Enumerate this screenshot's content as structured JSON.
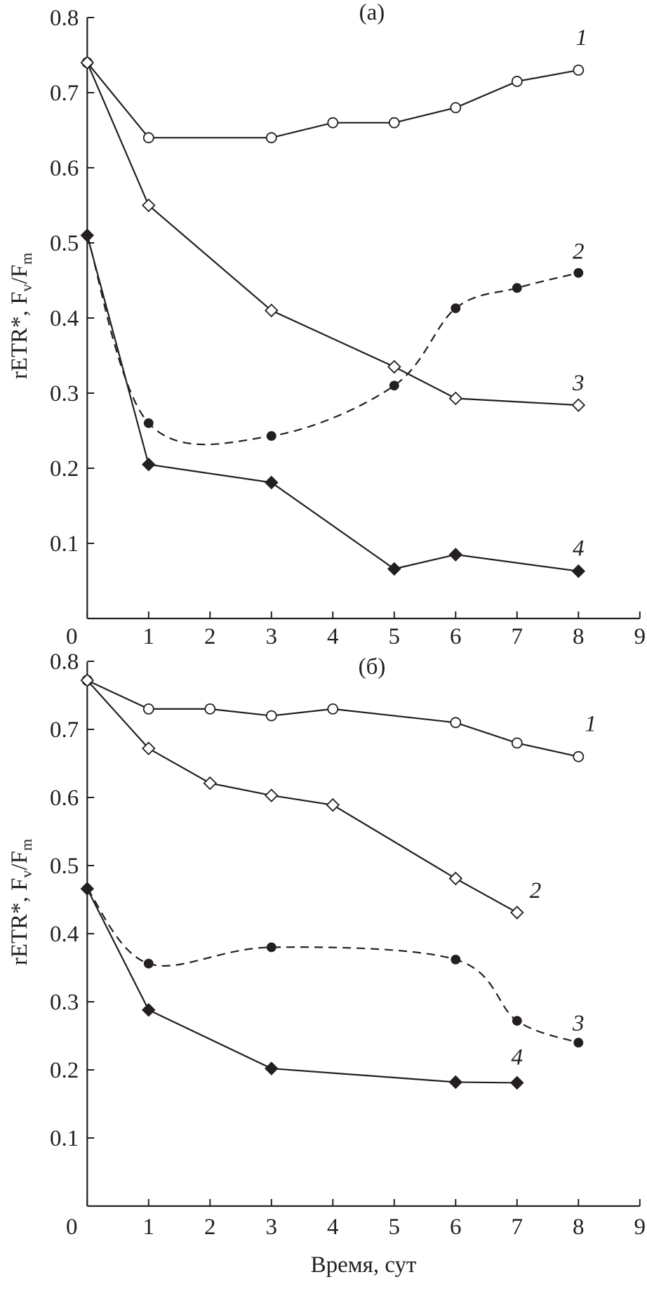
{
  "chart_data": [
    {
      "type": "line",
      "title": "(а)",
      "ylabel": "rETR*, Fv/Fm",
      "ylabel_parts": {
        "main": "rETR*, F",
        "sub1": "v",
        "mid": "/F",
        "sub2": "m"
      },
      "xlabel": "",
      "xlim": [
        0,
        9
      ],
      "ylim": [
        0,
        0.8
      ],
      "xticks": [
        "0",
        "1",
        "2",
        "3",
        "4",
        "5",
        "6",
        "7",
        "8",
        "9"
      ],
      "yticks": [
        "0.1",
        "0.2",
        "0.3",
        "0.4",
        "0.5",
        "0.6",
        "0.7",
        "0.8"
      ],
      "grid": false,
      "series": [
        {
          "name": "1",
          "marker": "open-circle",
          "dash": false,
          "x": [
            0,
            1,
            3,
            4,
            5,
            6,
            7,
            8
          ],
          "y": [
            0.74,
            0.64,
            0.64,
            0.66,
            0.66,
            0.68,
            0.715,
            0.73
          ],
          "label_at": [
            8.05,
            0.775
          ]
        },
        {
          "name": "2",
          "marker": "filled-circle",
          "dash": true,
          "x": [
            0,
            1,
            3,
            5,
            6,
            7,
            8
          ],
          "y": [
            0.51,
            0.26,
            0.243,
            0.31,
            0.413,
            0.44,
            0.46
          ],
          "label_at": [
            8.0,
            0.49
          ]
        },
        {
          "name": "3",
          "marker": "open-diamond",
          "dash": false,
          "x": [
            0,
            1,
            3,
            5,
            6,
            8
          ],
          "y": [
            0.74,
            0.55,
            0.41,
            0.335,
            0.293,
            0.284
          ],
          "label_at": [
            8.0,
            0.315
          ]
        },
        {
          "name": "4",
          "marker": "filled-diamond",
          "dash": false,
          "x": [
            0,
            1,
            3,
            5,
            6,
            8
          ],
          "y": [
            0.51,
            0.205,
            0.181,
            0.066,
            0.085,
            0.063
          ],
          "label_at": [
            8.0,
            0.095
          ]
        }
      ]
    },
    {
      "type": "line",
      "title": "(б)",
      "ylabel": "rETR*, Fv/Fm",
      "ylabel_parts": {
        "main": "rETR*, F",
        "sub1": "v",
        "mid": "/F",
        "sub2": "m"
      },
      "xlabel": "Время, сут",
      "xlim": [
        0,
        9
      ],
      "ylim": [
        0,
        0.8
      ],
      "xticks": [
        "0",
        "1",
        "2",
        "3",
        "4",
        "5",
        "6",
        "7",
        "8",
        "9"
      ],
      "yticks": [
        "0.1",
        "0.2",
        "0.3",
        "0.4",
        "0.5",
        "0.6",
        "0.7",
        "0.8"
      ],
      "grid": false,
      "series": [
        {
          "name": "1",
          "marker": "open-circle",
          "dash": false,
          "x": [
            0,
            1,
            2,
            3,
            4,
            6,
            7,
            8
          ],
          "y": [
            0.772,
            0.73,
            0.73,
            0.72,
            0.73,
            0.71,
            0.68,
            0.66
          ],
          "label_at": [
            8.2,
            0.71
          ]
        },
        {
          "name": "2",
          "marker": "open-diamond",
          "dash": false,
          "x": [
            0,
            1,
            2,
            3,
            4,
            6,
            7
          ],
          "y": [
            0.772,
            0.672,
            0.621,
            0.603,
            0.589,
            0.481,
            0.431
          ],
          "label_at": [
            7.3,
            0.465
          ]
        },
        {
          "name": "3",
          "marker": "filled-circle",
          "dash": true,
          "x": [
            0,
            1,
            3,
            6,
            7,
            8
          ],
          "y": [
            0.466,
            0.356,
            0.38,
            0.362,
            0.272,
            0.24
          ],
          "label_at": [
            8.0,
            0.27
          ]
        },
        {
          "name": "4",
          "marker": "filled-diamond",
          "dash": false,
          "x": [
            0,
            1,
            3,
            6,
            7
          ],
          "y": [
            0.466,
            0.288,
            0.202,
            0.182,
            0.181
          ],
          "label_at": [
            7.0,
            0.22
          ]
        }
      ]
    }
  ]
}
